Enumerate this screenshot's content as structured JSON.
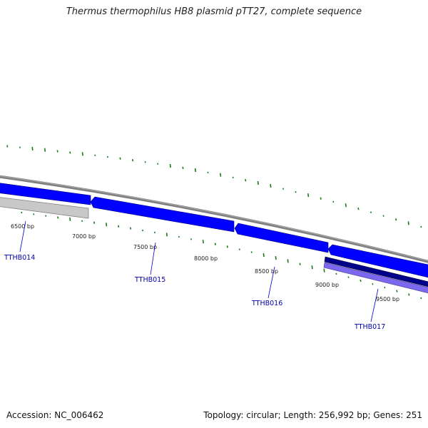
{
  "title": "Thermus thermophilus HB8 plasmid pTT27, complete sequence",
  "footer": {
    "accession": "Accession: NC_006462",
    "topology": "Topology: circular; Length: 256,992 bp; Genes: 251"
  },
  "scale": {
    "ticks": [
      {
        "label": "6500 bp"
      },
      {
        "label": "7000 bp"
      },
      {
        "label": "7500 bp"
      },
      {
        "label": "8000 bp"
      },
      {
        "label": "8500 bp"
      },
      {
        "label": "9000 bp"
      },
      {
        "label": "9500 bp"
      }
    ]
  },
  "genes": [
    {
      "label": "TTHB014"
    },
    {
      "label": "TTHB015"
    },
    {
      "label": "TTHB016"
    },
    {
      "label": "TTHB017"
    }
  ],
  "colors": {
    "backbone": "#808080",
    "forward_gene": "#0000ff",
    "forward_gene_dark": "#00008b",
    "reverse_gene_gray": "#c0c0c0",
    "reverse_gene_purple": "#7b68ee",
    "gc_marks": "#1a7a1a",
    "gene_label": "#0000aa"
  }
}
